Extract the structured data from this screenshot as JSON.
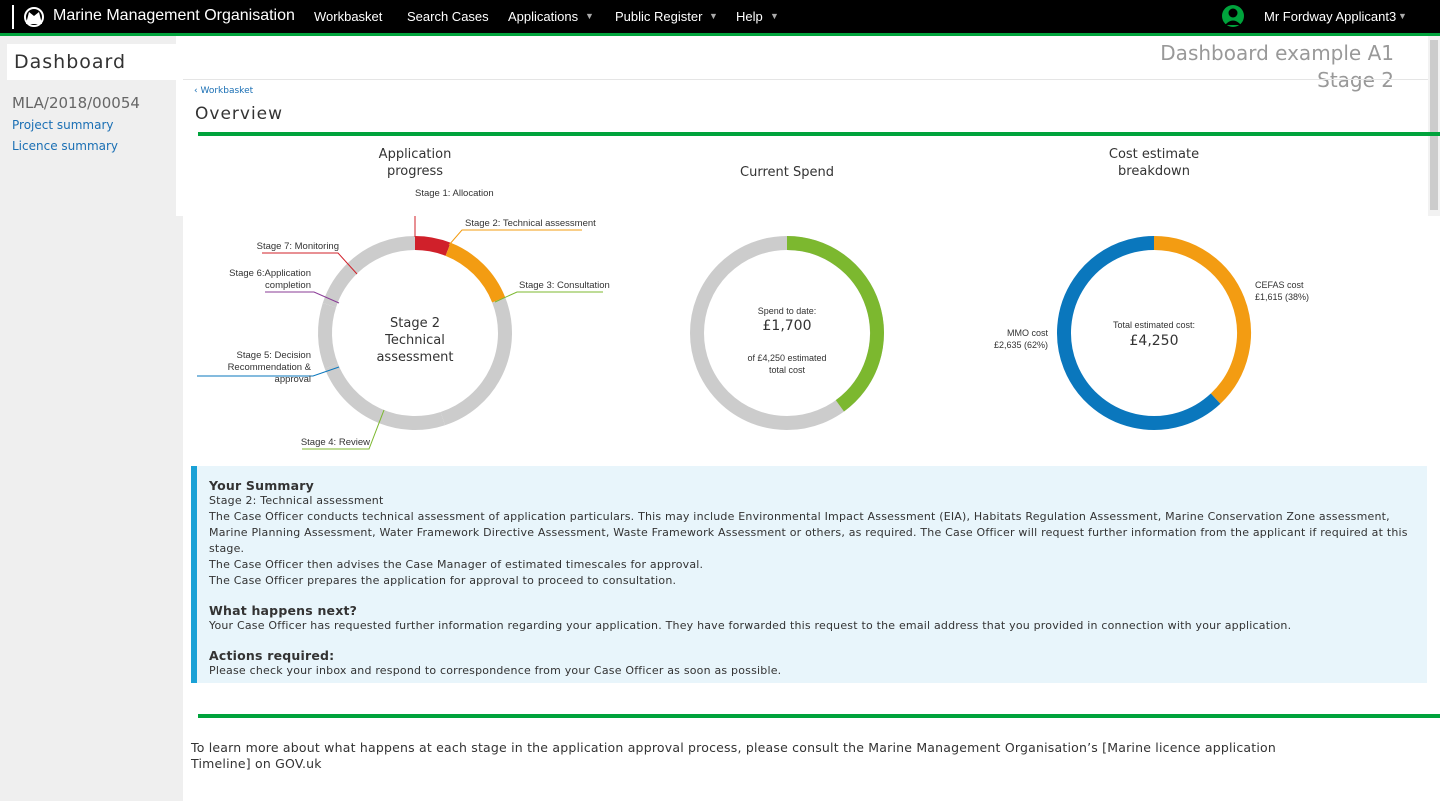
{
  "nav": {
    "brand": "Marine Management Organisation",
    "items": [
      "Workbasket",
      "Search Cases",
      "Applications",
      "Public Register",
      "Help"
    ],
    "user": "Mr Fordway Applicant3"
  },
  "sidebar": {
    "title": "Dashboard",
    "case_ref": "MLA/2018/00054",
    "links": [
      "Project summary",
      "Licence summary"
    ]
  },
  "header": {
    "example": "Dashboard example A1",
    "stage": "Stage 2",
    "breadcrumb": "Workbasket",
    "heading": "Overview"
  },
  "chart_data": [
    {
      "type": "donut",
      "title": "Application progress",
      "center_text": "Stage 2 Technical assessment",
      "categories": [
        "Stage 1: Allocation",
        "Stage 2: Technical assessment",
        "Stage 3: Consultation",
        "Stage 4: Review",
        "Stage 5: Decision Recommendation & approval",
        "Stage 6:Application completion",
        "Stage 7: Monitoring"
      ],
      "values": [
        6,
        13,
        26,
        24,
        11,
        8,
        12
      ],
      "colors": [
        "#d0202a",
        "#f39c12",
        "#cccccc",
        "#cccccc",
        "#cccccc",
        "#cccccc",
        "#cccccc"
      ]
    },
    {
      "type": "progress",
      "title": "Current Spend",
      "center_label": "Spend to date:",
      "value": 1700,
      "value_label": "£1,700",
      "total": 4250,
      "total_text": "of £4,250 estimated total cost",
      "color": "#7cb82f",
      "track_color": "#cccccc"
    },
    {
      "type": "donut",
      "title": "Cost estimate breakdown",
      "center_label": "Total estimated cost:",
      "total_label": "£4,250",
      "categories": [
        "CEFAS cost",
        "MMO cost"
      ],
      "values": [
        1615,
        2635
      ],
      "value_labels": [
        "£1,615 (38%)",
        "£2,635 (62%)"
      ],
      "colors": [
        "#f39c12",
        "#0a77bd"
      ]
    }
  ],
  "summary": {
    "heading": "Your Summary",
    "lines": [
      "Stage 2:  Technical assessment",
      "The Case Officer conducts technical assessment of application particulars.  This may include Environmental Impact Assessment (EIA), Habitats Regulation Assessment, Marine Conservation Zone assessment, Marine Planning Assessment, Water Framework Directive Assessment, Waste Framework Assessment or others, as required. The Case Officer will request further information from the applicant if required at this stage.",
      "The Case Officer then advises the Case Manager of estimated timescales for approval.",
      "The Case Officer prepares the application for approval to proceed to consultation."
    ],
    "next_heading": "What happens next?",
    "next_text": "Your Case Officer has requested further information regarding your application. They have forwarded this request to the email address that you provided in connection with your application.",
    "actions_heading": "Actions required:",
    "actions_text": "Please check your inbox and respond to correspondence from your Case Officer as soon as possible."
  },
  "footer": "To learn more about what happens at each stage in the application approval process, please consult the Marine Management Organisation’s [Marine licence application Timeline] on GOV.uk"
}
